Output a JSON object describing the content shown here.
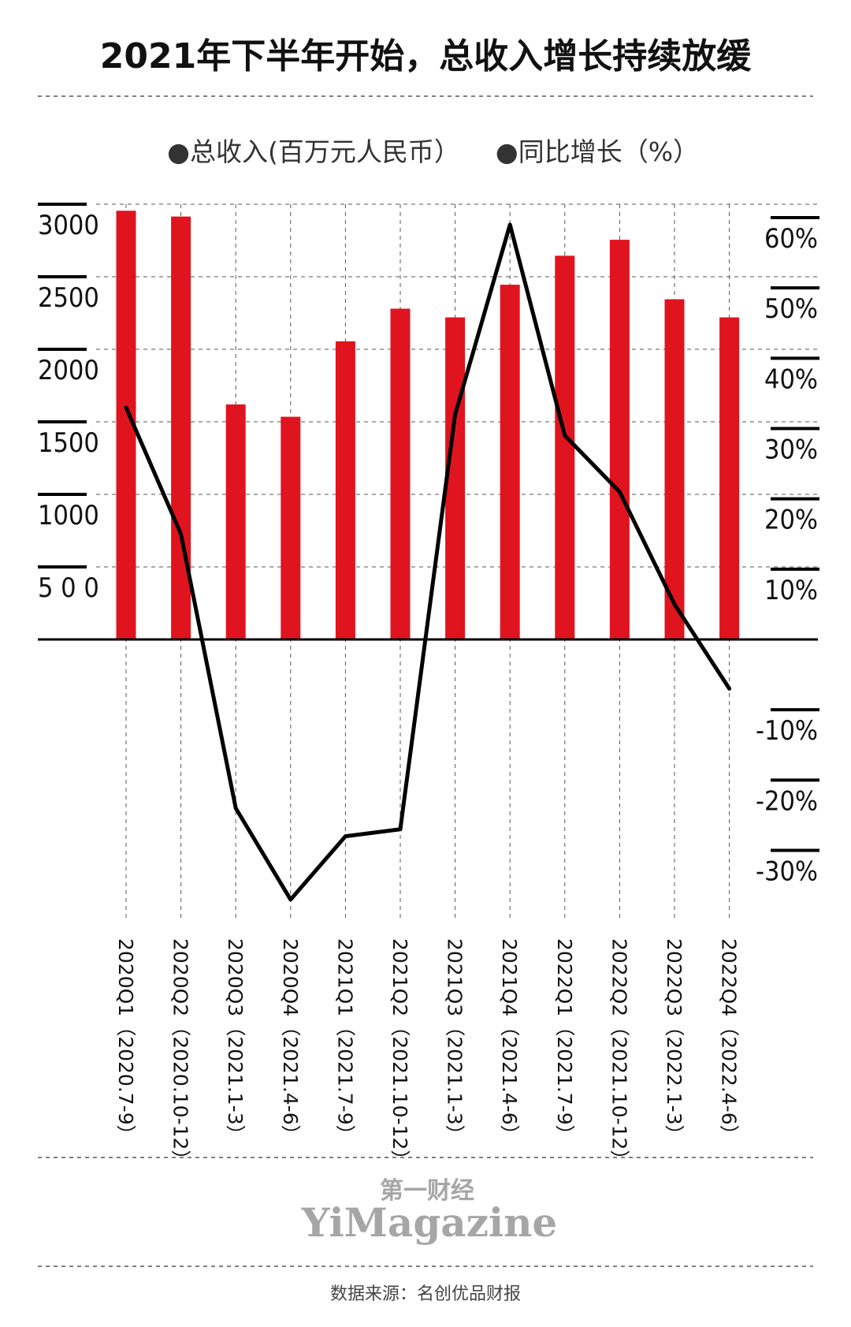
{
  "chart_data": {
    "type": "bar",
    "title": "2021年下半年开始，总收入增长持续放缓",
    "categories": [
      "2020Q1（2020.7-9）",
      "2020Q2（2020.10-12）",
      "2020Q3（2021.1-3）",
      "2020Q4（2021.4-6）",
      "2021Q1（2021.7-9）",
      "2021Q2（2021.10-12）",
      "2021Q3（2021.1-3）",
      "2021Q4（2021.4-6）",
      "2022Q1（2021.7-9）",
      "2022Q2（2021.10-12）",
      "2022Q3（2022.1-3）",
      "2022Q4（2022.4-6）"
    ],
    "series": [
      {
        "name": "总收入(百万元人民币）",
        "type": "bar",
        "axis": "left",
        "color": "#e0141e",
        "values": [
          2955,
          2915,
          1620,
          1535,
          2055,
          2280,
          2220,
          2445,
          2645,
          2755,
          2345,
          2220
        ]
      },
      {
        "name": "同比增长（%）",
        "type": "line",
        "axis": "right",
        "color": "#000000",
        "values": [
          33,
          15,
          -24,
          -37,
          -28,
          -27,
          32,
          59,
          29,
          21,
          5,
          -7
        ]
      }
    ],
    "y_left": {
      "ticks": [
        3000,
        2500,
        2000,
        1500,
        1000,
        500
      ],
      "tick_labels": [
        "3000",
        "2500",
        "2000",
        "1500",
        "1000",
        "5 0 0"
      ],
      "ylim": [
        0,
        3000
      ]
    },
    "y_right": {
      "ticks": [
        60,
        50,
        40,
        30,
        20,
        10,
        -10,
        -20,
        -30
      ],
      "tick_labels": [
        "60%",
        "50%",
        "40%",
        "30%",
        "20%",
        "10%",
        "-10%",
        "-20%",
        "-30%"
      ],
      "ylim": [
        -30,
        60
      ]
    },
    "legend_placement": "top-center",
    "grid": true
  },
  "legend": {
    "revenue_label": "●总收入(百万元人民币）",
    "growth_label": "●同比增长（%）"
  },
  "branding": {
    "cn": "第一财经",
    "en": "YiMagazine"
  },
  "source": "数据来源：名创优品财报",
  "colors": {
    "bar": "#e0141e",
    "line": "#000000",
    "brand": "#a6a6a6"
  }
}
